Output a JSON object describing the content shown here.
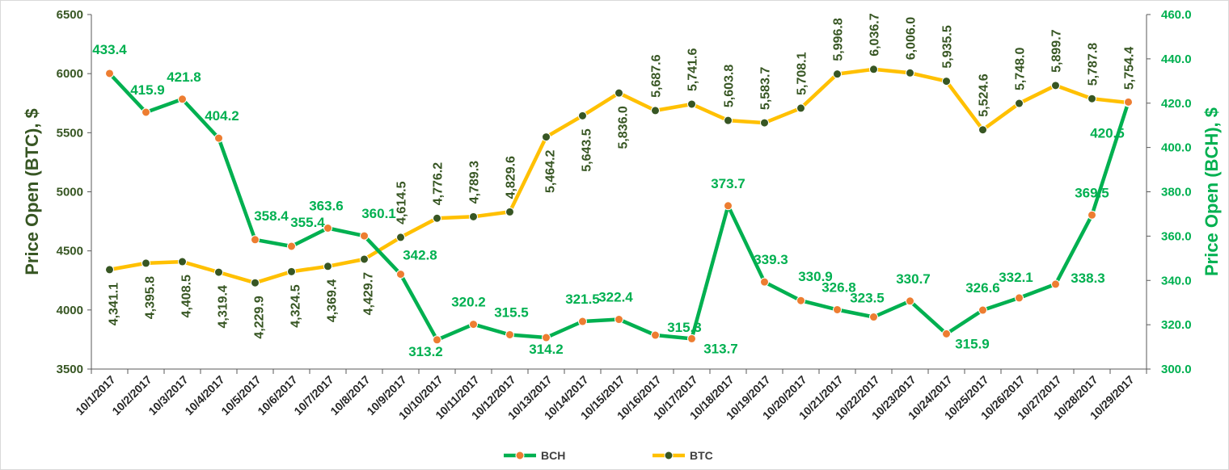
{
  "chart_data": {
    "type": "line",
    "categories": [
      "10/1/2017",
      "10/2/2017",
      "10/3/2017",
      "10/4/2017",
      "10/5/2017",
      "10/6/2017",
      "10/7/2017",
      "10/8/2017",
      "10/9/2017",
      "10/10/2017",
      "10/11/2017",
      "10/12/2017",
      "10/13/2017",
      "10/14/2017",
      "10/15/2017",
      "10/16/2017",
      "10/17/2017",
      "10/18/2017",
      "10/19/2017",
      "10/20/2017",
      "10/21/2017",
      "10/22/2017",
      "10/23/2017",
      "10/24/2017",
      "10/25/2017",
      "10/26/2017",
      "10/27/2017",
      "10/28/2017",
      "10/29/2017"
    ],
    "ylabel_left": "Price Open (BTC), $",
    "ylabel_right": "Price Open (BCH), $",
    "ylim_left": [
      3500,
      6500
    ],
    "ylim_right": [
      300,
      460
    ],
    "yticks_left": [
      "3500",
      "4000",
      "4500",
      "5000",
      "5500",
      "6000",
      "6500"
    ],
    "yticks_right": [
      "300.0",
      "320.0",
      "340.0",
      "360.0",
      "380.0",
      "400.0",
      "420.0",
      "440.0",
      "460.0"
    ],
    "grid": false,
    "legend_position": "bottom",
    "series": [
      {
        "name": "BCH",
        "axis": "right",
        "line_color": "#00B050",
        "marker_color": "#ED7D31",
        "values": [
          433.4,
          415.9,
          421.8,
          404.2,
          358.4,
          355.4,
          363.6,
          360.1,
          342.8,
          313.2,
          320.2,
          315.5,
          314.2,
          321.5,
          322.4,
          315.3,
          313.7,
          373.7,
          339.3,
          330.9,
          326.8,
          323.5,
          330.7,
          315.9,
          326.6,
          332.1,
          338.3,
          369.5,
          420.5
        ],
        "labels": [
          "433.4",
          "415.9",
          "421.8",
          "404.2",
          "358.4",
          "355.4",
          "363.6",
          "360.1",
          "342.8",
          "313.2",
          "320.2",
          "315.5",
          "314.2",
          "321.5",
          "322.4",
          "315.3",
          "313.7",
          "373.7",
          "339.3",
          "330.9",
          "326.8",
          "323.5",
          "330.7",
          "315.9",
          "326.6",
          "332.1",
          "338.3",
          "369.5",
          "420.5"
        ]
      },
      {
        "name": "BTC",
        "axis": "left",
        "line_color": "#FFC000",
        "marker_color": "#375623",
        "values": [
          4341.1,
          4395.8,
          4408.5,
          4319.4,
          4229.9,
          4324.5,
          4369.4,
          4429.7,
          4614.5,
          4776.2,
          4789.3,
          4829.6,
          5464.2,
          5643.5,
          5836.0,
          5687.6,
          5741.6,
          5603.8,
          5583.7,
          5708.1,
          5996.8,
          6036.7,
          6006.0,
          5935.5,
          5524.6,
          5748.0,
          5899.7,
          5787.8,
          5754.4
        ],
        "labels": [
          "4,341.1",
          "4,395.8",
          "4,408.5",
          "4,319.4",
          "4,229.9",
          "4,324.5",
          "4,369.4",
          "4,429.7",
          "4,614.5",
          "4,776.2",
          "4,789.3",
          "4,829.6",
          "5,464.2",
          "5,643.5",
          "5,836.0",
          "5,687.6",
          "5,741.6",
          "5,603.8",
          "5,583.7",
          "5,708.1",
          "5,996.8",
          "6,036.7",
          "6,006.0",
          "5,935.5",
          "5,524.6",
          "5,748.0",
          "5,899.7",
          "5,787.8",
          "5,754.4"
        ]
      }
    ]
  }
}
